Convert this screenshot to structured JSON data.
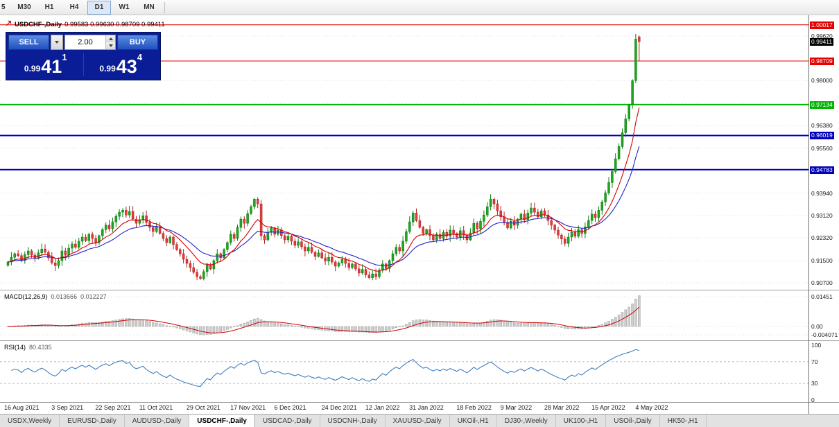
{
  "toolbar": {
    "timeframes": [
      "5",
      "M30",
      "H1",
      "H4",
      "D1",
      "W1",
      "MN"
    ],
    "active": "D1"
  },
  "chart_header": {
    "title": "USDCHF-,Daily",
    "ohlc_text": "0.99583 0.99630 0.98709 0.99411"
  },
  "trade_panel": {
    "sell_label": "SELL",
    "buy_label": "BUY",
    "volume": "2.00",
    "sell_price": {
      "prefix": "0.99",
      "big": "41",
      "sup": "1"
    },
    "buy_price": {
      "prefix": "0.99",
      "big": "43",
      "sup": "4"
    }
  },
  "chart_data": {
    "type": "candlestick",
    "symbol": "USDCHF-,Daily",
    "title": "USDCHF-,Daily 0.99583 0.99630 0.98709 0.99411",
    "current_ohlc": {
      "open": 0.99583,
      "high": 0.9963,
      "low": 0.98709,
      "close": 0.99411
    },
    "closes": [
      0.9145,
      0.9162,
      0.9175,
      0.9168,
      0.915,
      0.9172,
      0.9185,
      0.917,
      0.9158,
      0.9178,
      0.9192,
      0.918,
      0.916,
      0.9142,
      0.9132,
      0.915,
      0.9185,
      0.917,
      0.9195,
      0.921,
      0.9198,
      0.922,
      0.9235,
      0.9222,
      0.9245,
      0.923,
      0.9215,
      0.924,
      0.9262,
      0.9278,
      0.9265,
      0.929,
      0.931,
      0.9325,
      0.9332,
      0.9315,
      0.9328,
      0.93,
      0.9285,
      0.9298,
      0.9312,
      0.9288,
      0.927,
      0.9255,
      0.9272,
      0.9248,
      0.923,
      0.9215,
      0.9235,
      0.9208,
      0.919,
      0.9175,
      0.9155,
      0.914,
      0.9125,
      0.9108,
      0.9092,
      0.9085,
      0.911,
      0.9135,
      0.912,
      0.915,
      0.9175,
      0.916,
      0.919,
      0.9215,
      0.9245,
      0.923,
      0.927,
      0.93,
      0.9285,
      0.932,
      0.9345,
      0.9372,
      0.9355,
      0.924,
      0.9225,
      0.9252,
      0.9268,
      0.9245,
      0.926,
      0.924,
      0.9225,
      0.9238,
      0.922,
      0.9205,
      0.9218,
      0.92,
      0.9185,
      0.9198,
      0.918,
      0.9165,
      0.9178,
      0.916,
      0.9148,
      0.9162,
      0.9145,
      0.913,
      0.9142,
      0.9155,
      0.914,
      0.9125,
      0.9138,
      0.912,
      0.9105,
      0.9118,
      0.9098,
      0.9088,
      0.9102,
      0.9092,
      0.9115,
      0.9138,
      0.9122,
      0.915,
      0.9175,
      0.9198,
      0.9185,
      0.922,
      0.9255,
      0.929,
      0.9322,
      0.9295,
      0.927,
      0.9248,
      0.9262,
      0.924,
      0.9225,
      0.9245,
      0.923,
      0.9252,
      0.9238,
      0.926,
      0.9248,
      0.9235,
      0.9258,
      0.9242,
      0.9225,
      0.925,
      0.9285,
      0.9265,
      0.9292,
      0.9315,
      0.9345,
      0.9372,
      0.9355,
      0.933,
      0.9308,
      0.9288,
      0.9268,
      0.9292,
      0.9278,
      0.93,
      0.9318,
      0.9298,
      0.9322,
      0.934,
      0.9325,
      0.9308,
      0.933,
      0.9315,
      0.9295,
      0.9278,
      0.926,
      0.9242,
      0.9228,
      0.9212,
      0.9235,
      0.9252,
      0.9238,
      0.9262,
      0.9248,
      0.9272,
      0.9295,
      0.9318,
      0.9305,
      0.9332,
      0.9362,
      0.9395,
      0.9432,
      0.9472,
      0.9518,
      0.9562,
      0.9612,
      0.9662,
      0.9712,
      0.98,
      0.995,
      0.99411
    ],
    "x_labels": [
      {
        "text": "16 Aug 2021",
        "index": 0
      },
      {
        "text": "3 Sep 2021",
        "index": 14
      },
      {
        "text": "22 Sep 2021",
        "index": 27
      },
      {
        "text": "11 Oct 2021",
        "index": 40
      },
      {
        "text": "29 Oct 2021",
        "index": 54
      },
      {
        "text": "17 Nov 2021",
        "index": 67
      },
      {
        "text": "6 Dec 2021",
        "index": 80
      },
      {
        "text": "24 Dec 2021",
        "index": 94
      },
      {
        "text": "12 Jan 2022",
        "index": 107
      },
      {
        "text": "31 Jan 2022",
        "index": 120
      },
      {
        "text": "18 Feb 2022",
        "index": 134
      },
      {
        "text": "9 Mar 2022",
        "index": 147
      },
      {
        "text": "28 Mar 2022",
        "index": 160
      },
      {
        "text": "15 Apr 2022",
        "index": 174
      },
      {
        "text": "4 May 2022",
        "index": 187
      }
    ],
    "y_ticks": [
      {
        "text": "0.99620",
        "value": 0.9962
      },
      {
        "text": "0.98000",
        "value": 0.98
      },
      {
        "text": "0.97180",
        "value": 0.9718
      },
      {
        "text": "0.96380",
        "value": 0.9638
      },
      {
        "text": "0.95560",
        "value": 0.9556
      },
      {
        "text": "0.93940",
        "value": 0.9394
      },
      {
        "text": "0.93120",
        "value": 0.9312
      },
      {
        "text": "0.92320",
        "value": 0.9232
      },
      {
        "text": "0.91500",
        "value": 0.915
      },
      {
        "text": "0.90700",
        "value": 0.907
      }
    ],
    "horizontal_lines": [
      {
        "label": "1.00017",
        "value": 1.00017,
        "color": "#e60000",
        "width": 1
      },
      {
        "label": "0.98709",
        "value": 0.98709,
        "color": "#e60000",
        "width": 1
      },
      {
        "label": "0.97134",
        "value": 0.97134,
        "color": "#00b400",
        "width": 2
      },
      {
        "label": "0.96019",
        "value": 0.96019,
        "color": "#0000bb",
        "width": 2
      },
      {
        "label": "0.94783",
        "value": 0.94783,
        "color": "#0000bb",
        "width": 2
      }
    ],
    "bid_label": {
      "text": "0.99411",
      "value": 0.99411,
      "bg": "#000000"
    },
    "ma_lines": [
      {
        "name": "fast-ma",
        "period": 10,
        "color": "#d40000"
      },
      {
        "name": "slow-ma",
        "period": 20,
        "color": "#2222cc"
      }
    ],
    "indicators": {
      "macd": {
        "label": "MACD(12,26,9)",
        "main_value": "0.013666",
        "signal_value": "0.012227",
        "fast": 12,
        "slow": 26,
        "signal": 9,
        "axis_ticks": [
          {
            "text": "0.01451",
            "value": 0.01451
          },
          {
            "text": "0.00",
            "value": 0
          },
          {
            "text": "-0.004071",
            "value": -0.004071
          }
        ],
        "histogram_color": "#cfcfcf",
        "signal_color": "#cc0000"
      },
      "rsi": {
        "label": "RSI(14)",
        "value": "80.4335",
        "period": 14,
        "levels": [
          70,
          30
        ],
        "axis_ticks": [
          {
            "text": "100",
            "value": 100
          },
          {
            "text": "70",
            "value": 70
          },
          {
            "text": "30",
            "value": 30
          },
          {
            "text": "0",
            "value": 0
          }
        ],
        "line_color": "#3e7dc0"
      }
    }
  },
  "tabs": [
    {
      "label": "USDX,Weekly",
      "active": false
    },
    {
      "label": "EURUSD-,Daily",
      "active": false
    },
    {
      "label": "AUDUSD-,Daily",
      "active": false
    },
    {
      "label": "USDCHF-,Daily",
      "active": true
    },
    {
      "label": "USDCAD-,Daily",
      "active": false
    },
    {
      "label": "USDCNH-,Daily",
      "active": false
    },
    {
      "label": "XAUUSD-,Daily",
      "active": false
    },
    {
      "label": "UKOil-,H1",
      "active": false
    },
    {
      "label": "DJ30-,Weekly",
      "active": false
    },
    {
      "label": "UK100-,H1",
      "active": false
    },
    {
      "label": "USOil-,Daily",
      "active": false
    },
    {
      "label": "HK50-,H1",
      "active": false
    }
  ]
}
